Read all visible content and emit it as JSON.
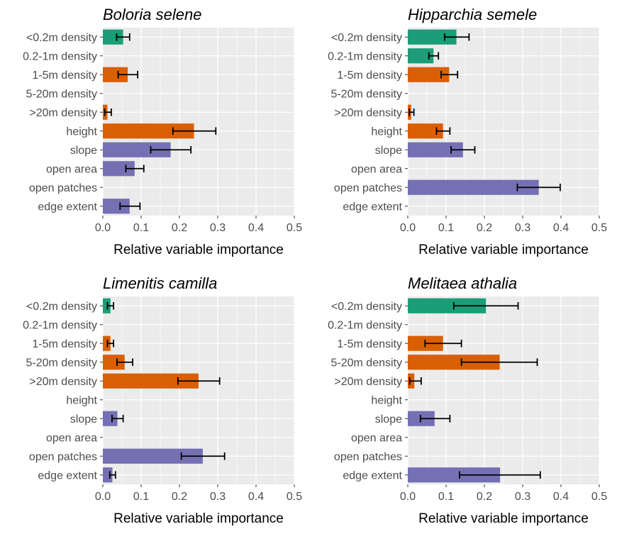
{
  "chart_data": [
    {
      "type": "bar",
      "orientation": "horizontal",
      "title": "Boloria selene",
      "xlabel": "Relative variable importance",
      "xlim": [
        0,
        0.5
      ],
      "xticks": [
        "0.0",
        "0.1",
        "0.2",
        "0.3",
        "0.4",
        "0.5"
      ],
      "categories": [
        "<0.2m density",
        "0.2-1m density",
        "1-5m density",
        "5-20m density",
        ">20m density",
        "height",
        "slope",
        "open area",
        "open patches",
        "edge extent"
      ],
      "values": [
        0.053,
        0,
        0.065,
        0,
        0.012,
        0.238,
        0.177,
        0.083,
        0,
        0.07
      ],
      "error_low": [
        0.036,
        null,
        0.04,
        null,
        0.005,
        0.183,
        0.125,
        0.06,
        null,
        0.045
      ],
      "error_high": [
        0.07,
        null,
        0.091,
        null,
        0.022,
        0.295,
        0.23,
        0.107,
        null,
        0.097
      ],
      "colors": [
        "#1b9e77",
        "#1b9e77",
        "#d95f02",
        "#d95f02",
        "#d95f02",
        "#d95f02",
        "#7570b3",
        "#7570b3",
        "#7570b3",
        "#7570b3"
      ]
    },
    {
      "type": "bar",
      "orientation": "horizontal",
      "title": "Hipparchia semele",
      "xlabel": "Relative variable importance",
      "xlim": [
        0,
        0.5
      ],
      "xticks": [
        "0.0",
        "0.1",
        "0.2",
        "0.3",
        "0.4",
        "0.5"
      ],
      "categories": [
        "<0.2m density",
        "0.2-1m density",
        "1-5m density",
        "5-20m density",
        ">20m density",
        "height",
        "slope",
        "open area",
        "open patches",
        "edge extent"
      ],
      "values": [
        0.127,
        0.067,
        0.108,
        0,
        0.009,
        0.092,
        0.144,
        0,
        0.342,
        0
      ],
      "error_low": [
        0.096,
        0.055,
        0.087,
        null,
        0.004,
        0.075,
        0.113,
        null,
        0.286,
        null
      ],
      "error_high": [
        0.16,
        0.08,
        0.13,
        null,
        0.016,
        0.11,
        0.175,
        null,
        0.398,
        null
      ],
      "colors": [
        "#1b9e77",
        "#1b9e77",
        "#d95f02",
        "#d95f02",
        "#d95f02",
        "#d95f02",
        "#7570b3",
        "#7570b3",
        "#7570b3",
        "#7570b3"
      ]
    },
    {
      "type": "bar",
      "orientation": "horizontal",
      "title": "Limenitis camilla",
      "xlabel": "Relative variable importance",
      "xlim": [
        0,
        0.5
      ],
      "xticks": [
        "0.0",
        "0.1",
        "0.2",
        "0.3",
        "0.4",
        "0.5"
      ],
      "categories": [
        "<0.2m density",
        "0.2-1m density",
        "1-5m density",
        "5-20m density",
        ">20m density",
        "height",
        "slope",
        "open area",
        "open patches",
        "edge extent"
      ],
      "values": [
        0.02,
        0,
        0.02,
        0.057,
        0.25,
        0,
        0.038,
        0,
        0.261,
        0.025
      ],
      "error_low": [
        0.012,
        null,
        0.012,
        0.037,
        0.196,
        null,
        0.024,
        null,
        0.205,
        0.018
      ],
      "error_high": [
        0.028,
        null,
        0.028,
        0.078,
        0.305,
        null,
        0.053,
        null,
        0.318,
        0.033
      ],
      "colors": [
        "#1b9e77",
        "#1b9e77",
        "#d95f02",
        "#d95f02",
        "#d95f02",
        "#d95f02",
        "#7570b3",
        "#7570b3",
        "#7570b3",
        "#7570b3"
      ]
    },
    {
      "type": "bar",
      "orientation": "horizontal",
      "title": "Melitaea athalia",
      "xlabel": "Relative variable importance",
      "xlim": [
        0,
        0.5
      ],
      "xticks": [
        "0.0",
        "0.1",
        "0.2",
        "0.3",
        "0.4",
        "0.5"
      ],
      "categories": [
        "<0.2m density",
        "0.2-1m density",
        "1-5m density",
        "5-20m density",
        ">20m density",
        "height",
        "slope",
        "open area",
        "open patches",
        "edge extent"
      ],
      "values": [
        0.204,
        0,
        0.092,
        0.24,
        0.017,
        0,
        0.07,
        0,
        0,
        0.241
      ],
      "error_low": [
        0.12,
        null,
        0.045,
        0.14,
        0.005,
        null,
        0.033,
        null,
        null,
        0.135
      ],
      "error_high": [
        0.288,
        null,
        0.14,
        0.338,
        0.035,
        null,
        0.11,
        null,
        null,
        0.346
      ],
      "colors": [
        "#1b9e77",
        "#1b9e77",
        "#d95f02",
        "#d95f02",
        "#d95f02",
        "#d95f02",
        "#7570b3",
        "#7570b3",
        "#7570b3",
        "#7570b3"
      ]
    }
  ]
}
